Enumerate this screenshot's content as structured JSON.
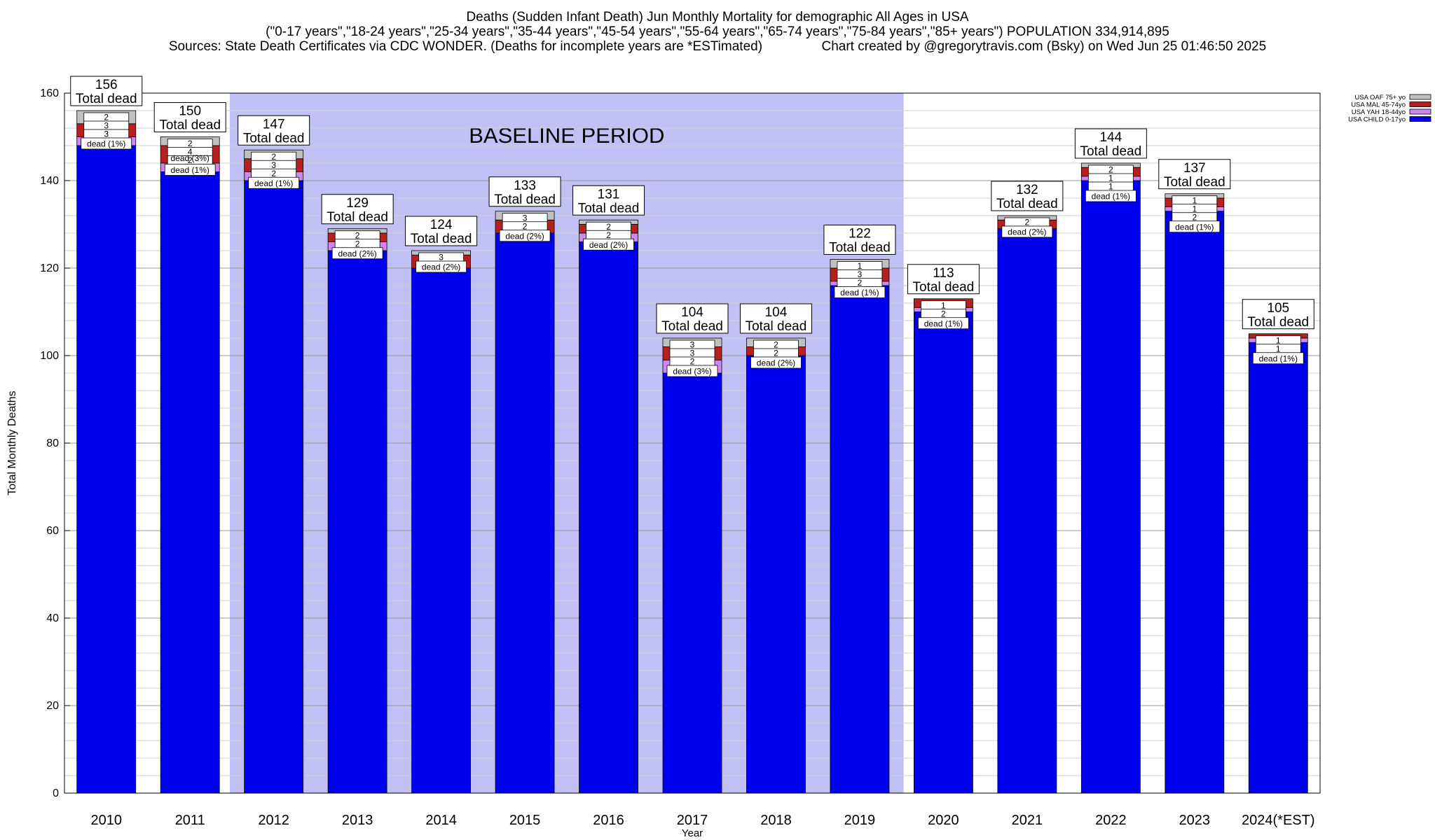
{
  "title_lines": [
    "Deaths (Sudden Infant Death) Jun Monthly Mortality for demographic All Ages in USA",
    "(\"0-17 years\",\"18-24 years\",\"25-34 years\",\"35-44 years\",\"45-54 years\",\"55-64 years\",\"65-74 years\",\"75-84 years\",\"85+ years\") POPULATION 334,914,895",
    "Sources: State Death Certificates via CDC WONDER. (Deaths for incomplete years are *ESTimated)                Chart created by @gregorytravis.com (Bsky) on Wed Jun 25 01:46:50 2025"
  ],
  "chart_data": {
    "type": "bar",
    "stacked": true,
    "categories": [
      "2010",
      "2011",
      "2012",
      "2013",
      "2014",
      "2015",
      "2016",
      "2017",
      "2018",
      "2019",
      "2020",
      "2021",
      "2022",
      "2023",
      "2024(*EST)"
    ],
    "totals": [
      156,
      150,
      147,
      129,
      124,
      133,
      131,
      104,
      104,
      122,
      113,
      132,
      144,
      137,
      105
    ],
    "total_label": "Total dead",
    "series": [
      {
        "name": "USA CHILD 0-17yo",
        "color": "#0000f0",
        "values": [
          148,
          142,
          140,
          124,
          120,
          128,
          126,
          96,
          100,
          116,
          110,
          129,
          140,
          133,
          103
        ]
      },
      {
        "name": "USA YAH 18-44yo",
        "color": "#cc88ee",
        "values": [
          2,
          2,
          2,
          2,
          0,
          0,
          2,
          3,
          0,
          1,
          1,
          0,
          1,
          1,
          1
        ]
      },
      {
        "name": "USA MAL 45-74yo",
        "color": "#b82020",
        "values": [
          3,
          4,
          3,
          2,
          3,
          3,
          2,
          3,
          2,
          3,
          2,
          2,
          2,
          2,
          1
        ]
      },
      {
        "name": "USA OAF 75+ yo",
        "color": "#c0c0c0",
        "values": [
          3,
          2,
          2,
          1,
          1,
          2,
          1,
          2,
          2,
          2,
          0,
          1,
          1,
          1,
          0
        ]
      }
    ],
    "segment_labels": [
      [
        "2",
        "3",
        "3"
      ],
      [
        "2",
        "4",
        "2"
      ],
      [
        "2",
        "3",
        "2"
      ],
      [
        "2",
        "2"
      ],
      [
        "3"
      ],
      [
        "3",
        "2"
      ],
      [
        "2",
        "2"
      ],
      [
        "3",
        "3",
        "2"
      ],
      [
        "2",
        "2"
      ],
      [
        "1",
        "3",
        "2"
      ],
      [
        "1",
        "2"
      ],
      [
        "2"
      ],
      [
        "2",
        "1",
        "1"
      ],
      [
        "1",
        "1",
        "2"
      ],
      [
        "1",
        "1"
      ]
    ],
    "pct_labels": [
      "dead (1%)",
      "dead (1%)",
      "dead (1%)",
      "dead (2%)",
      "dead (2%)",
      "dead (2%)",
      "dead (2%)",
      "dead (3%)",
      "dead (2%)",
      "dead (1%)",
      "dead (1%)",
      "dead (2%)",
      "dead (1%)",
      "dead (1%)",
      "dead (1%)"
    ],
    "extra_labels": {
      "1": "dead (3%)"
    },
    "ylabel": "Total Monthly Deaths",
    "xlabel": "Year",
    "ylim": [
      0,
      160
    ],
    "yticks": [
      0,
      20,
      40,
      60,
      80,
      100,
      120,
      140,
      160
    ],
    "grid": true,
    "legend_position": "top-right",
    "baseline": {
      "label": "BASELINE PERIOD",
      "from": "2012",
      "to": "2019",
      "color": "#c0c0f4"
    }
  }
}
